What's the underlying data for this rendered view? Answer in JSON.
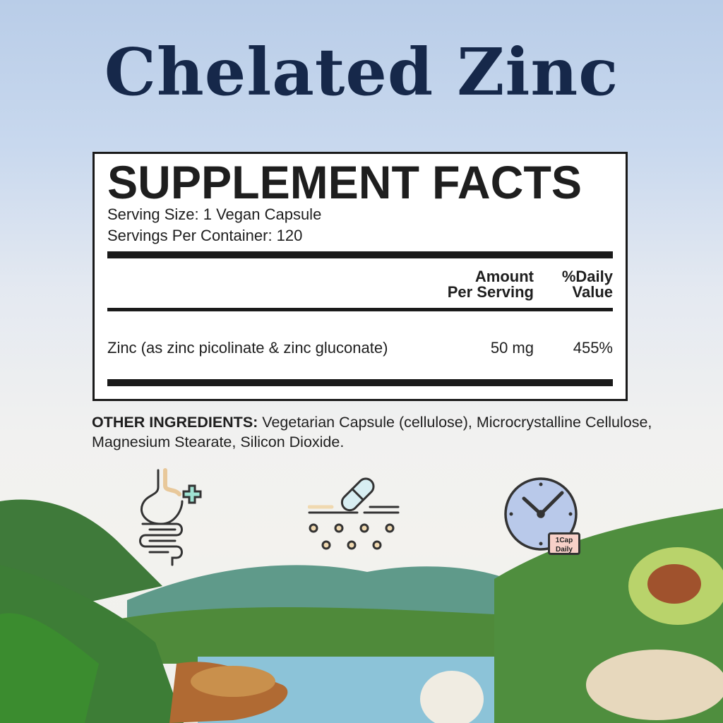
{
  "title": "Chelated Zinc",
  "facts": {
    "heading": "SUPPLEMENT FACTS",
    "serving_size": "Serving Size: 1 Vegan Capsule",
    "servings_per_container": "Servings Per Container: 120",
    "col_amount_1": "Amount",
    "col_amount_2": "Per Serving",
    "col_dv_1": "%Daily",
    "col_dv_2": "Value",
    "rows": [
      {
        "name": "Zinc (as zinc picolinate & zinc gluconate)",
        "amount": "50 mg",
        "dv": "455%"
      }
    ]
  },
  "other_ingredients": {
    "label": "OTHER INGREDIENTS:",
    "text": " Vegetarian Capsule (cellulose), Microcrystalline Cellulose, Magnesium Stearate, Silicon Dioxide."
  },
  "icons": [
    {
      "name": "digestive-health-icon"
    },
    {
      "name": "capsule-absorption-icon"
    },
    {
      "name": "clock-icon",
      "badge_1": "1Cap",
      "badge_2": "Daily"
    }
  ],
  "colors": {
    "title": "#16284a",
    "text": "#1e1e1e"
  }
}
